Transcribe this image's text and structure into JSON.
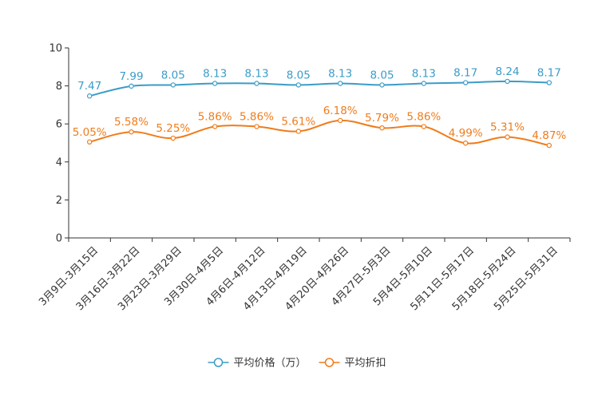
{
  "chart_data": {
    "type": "line",
    "title": "",
    "xlabel": "",
    "ylabel": "",
    "ylim": [
      0,
      10
    ],
    "yticks": [
      0,
      2,
      4,
      6,
      8,
      10
    ],
    "categories": [
      "3月9日-3月15日",
      "3月16日-3月22日",
      "3月23日-3月29日",
      "3月30日-4月5日",
      "4月6日-4月12日",
      "4月13日-4月19日",
      "4月20日-4月26日",
      "4月27日-5月3日",
      "5月4日-5月10日",
      "5月11日-5月17日",
      "5月18日-5月24日",
      "5月25日-5月31日"
    ],
    "series": [
      {
        "name": "平均价格（万）",
        "color": "#3b9cc8",
        "values": [
          7.47,
          7.99,
          8.05,
          8.13,
          8.13,
          8.05,
          8.13,
          8.05,
          8.13,
          8.17,
          8.24,
          8.17
        ],
        "labels": [
          "7.47",
          "7.99",
          "8.05",
          "8.13",
          "8.13",
          "8.05",
          "8.13",
          "8.05",
          "8.13",
          "8.17",
          "8.24",
          "8.17"
        ]
      },
      {
        "name": "平均折扣",
        "color": "#f07c1b",
        "values": [
          5.05,
          5.58,
          5.25,
          5.86,
          5.86,
          5.61,
          6.18,
          5.79,
          5.86,
          4.99,
          5.31,
          4.87
        ],
        "labels": [
          "5.05%",
          "5.58%",
          "5.25%",
          "5.86%",
          "5.86%",
          "5.61%",
          "6.18%",
          "5.79%",
          "5.86%",
          "4.99%",
          "5.31%",
          "4.87%"
        ]
      }
    ],
    "grid": false,
    "legend_position": "bottom-center"
  }
}
